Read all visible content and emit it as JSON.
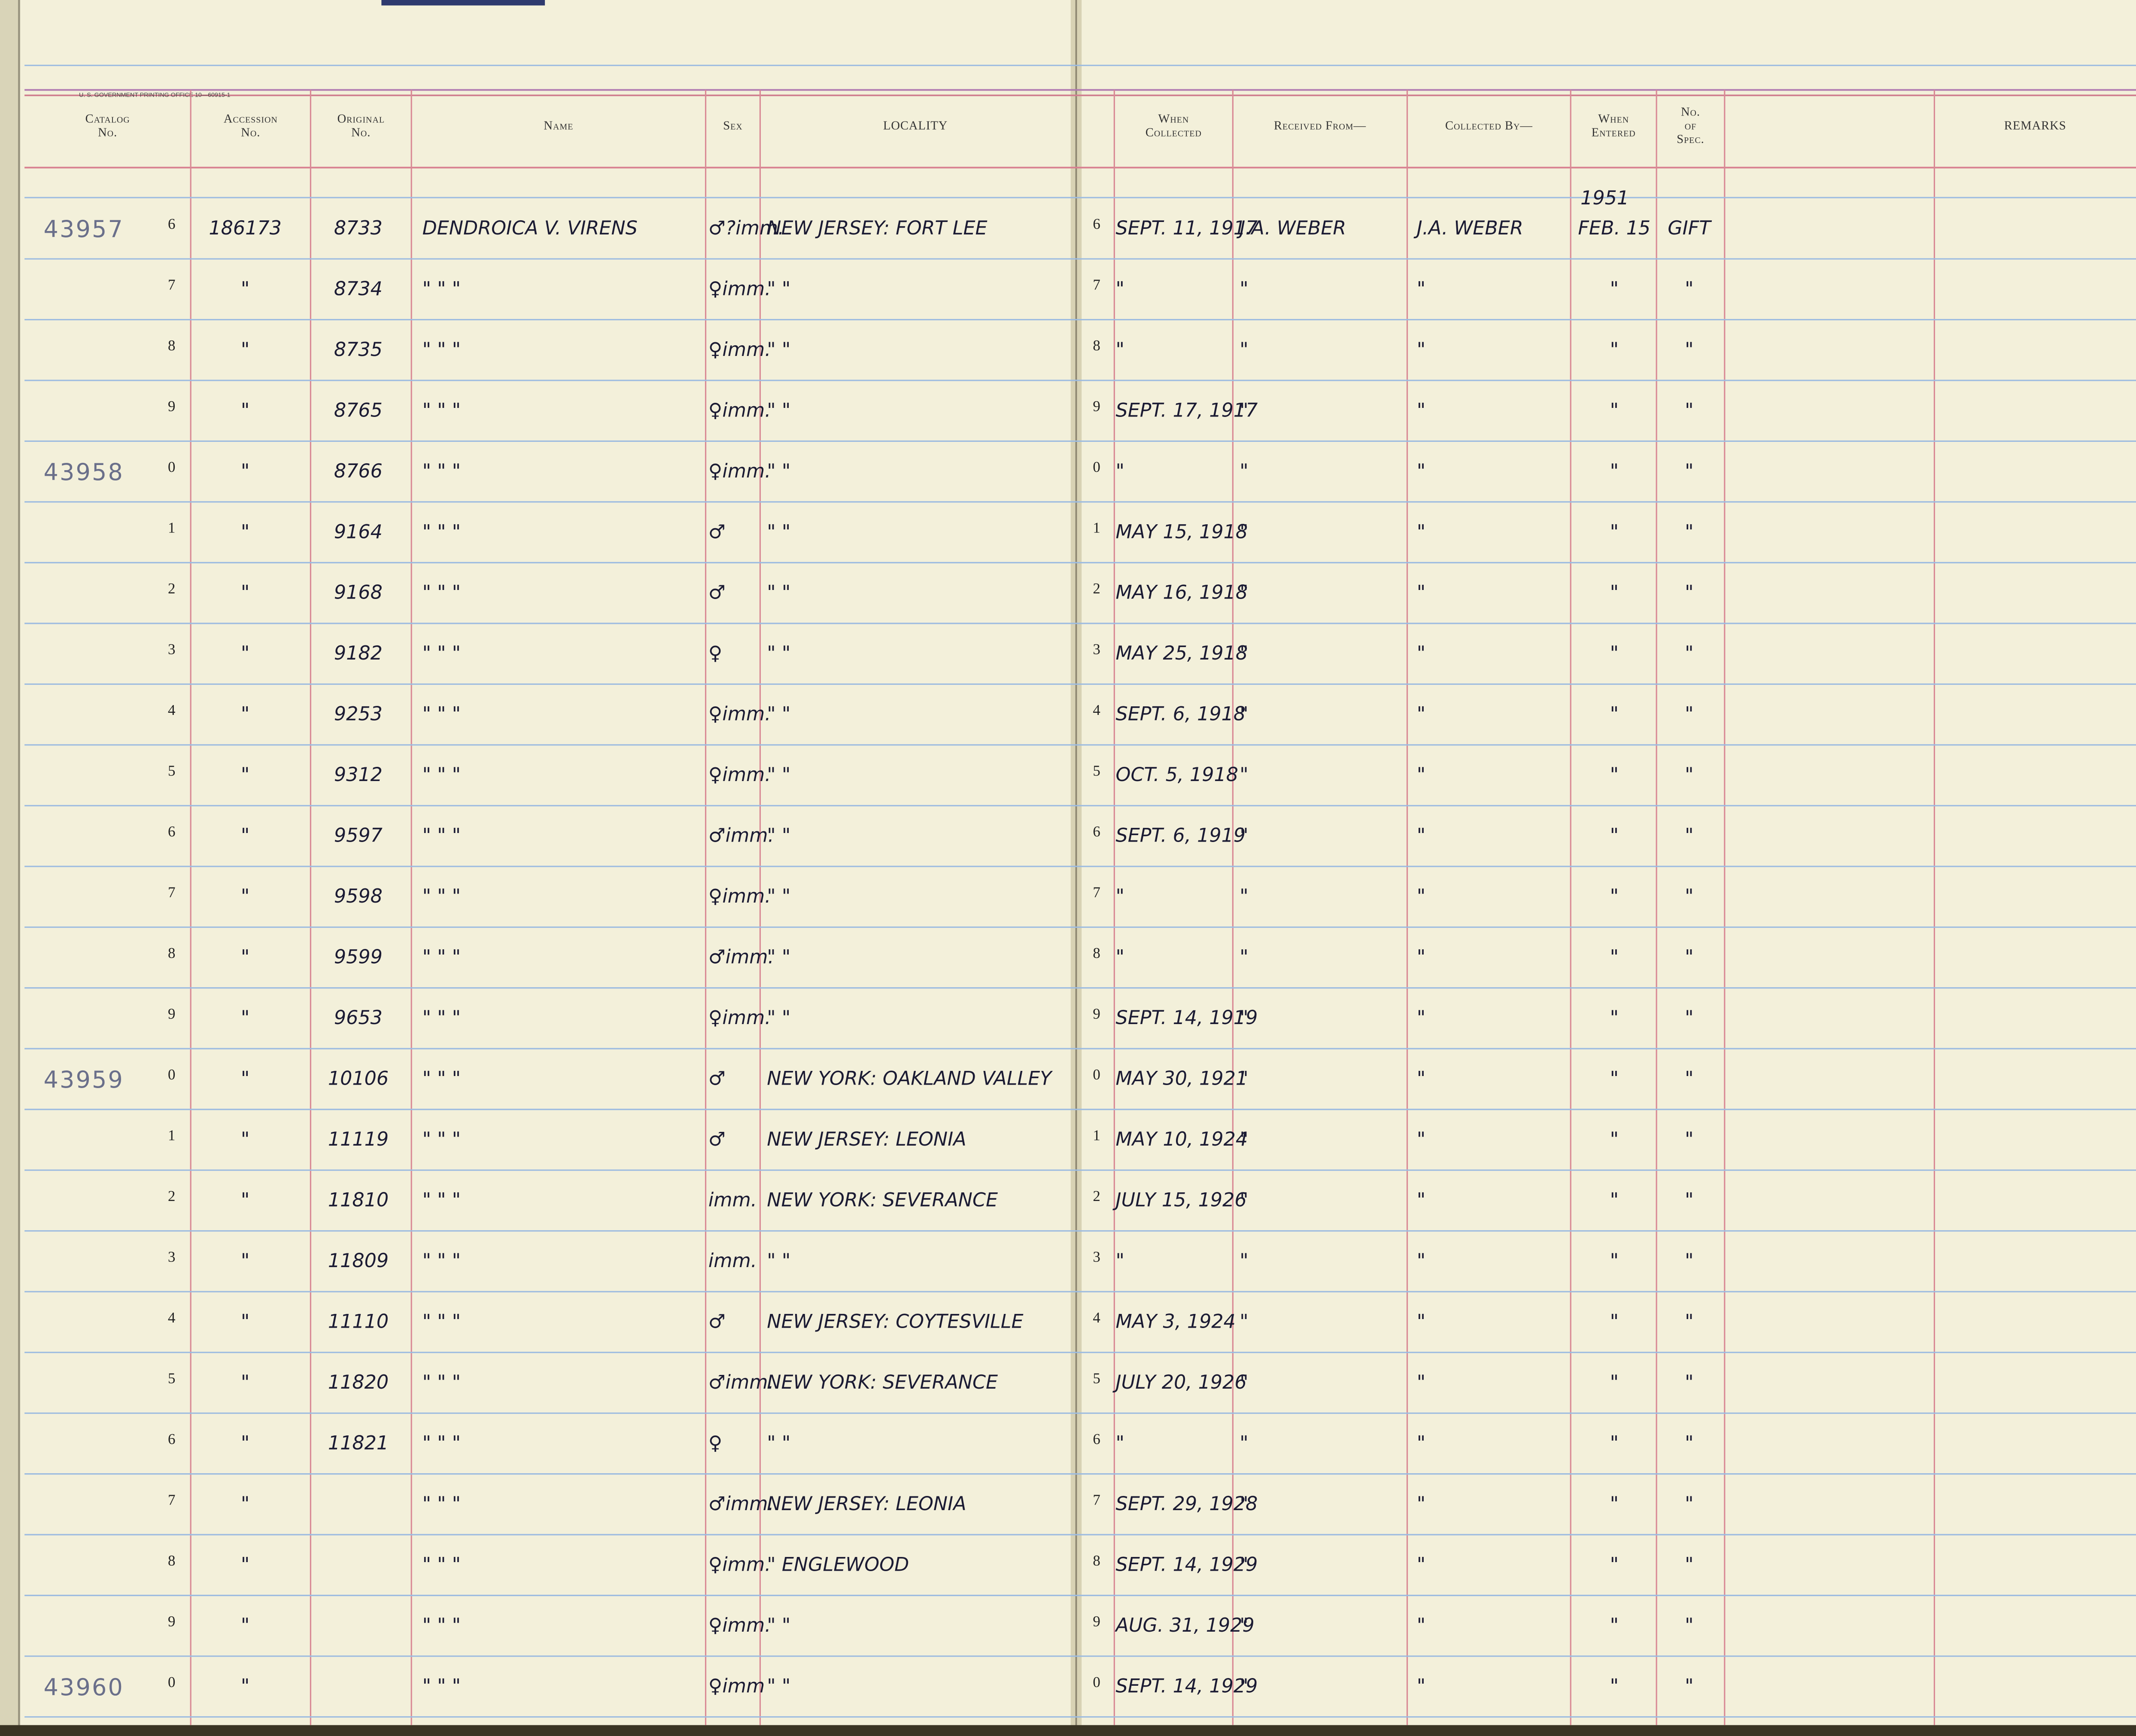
{
  "header": {
    "printer": "U. S. GOVERNMENT PRINTING OFFICE 10—60915-1",
    "columns": [
      {
        "key": "catalog",
        "label": [
          "Catalog",
          "No."
        ]
      },
      {
        "key": "accession",
        "label": [
          "Accession",
          "No."
        ]
      },
      {
        "key": "original",
        "label": [
          "Original",
          "No."
        ]
      },
      {
        "key": "name",
        "label": [
          "Name"
        ]
      },
      {
        "key": "sex",
        "label": [
          "Sex"
        ]
      },
      {
        "key": "locality",
        "label": [
          "LOCALITY"
        ]
      },
      {
        "key": "when",
        "label": [
          "When",
          "Collected"
        ]
      },
      {
        "key": "received",
        "label": [
          "Received From—"
        ]
      },
      {
        "key": "collected",
        "label": [
          "Collected By—"
        ]
      },
      {
        "key": "entered",
        "label": [
          "When",
          "Entered"
        ]
      },
      {
        "key": "spec",
        "label": [
          "No.",
          "of",
          "Spec."
        ]
      },
      {
        "key": "remarks",
        "label": [
          "REMARKS"
        ]
      }
    ]
  },
  "rows": [
    {
      "catalog": "43957",
      "line": "6",
      "accession": "186173",
      "original": "8733",
      "name": "DENDROICA V. VIRENS",
      "sex": "♂?imm.",
      "locality": "NEW JERSEY: FORT LEE",
      "when": "SEPT. 11, 1917",
      "received": "J.A. WEBER",
      "collected": "J.A. WEBER",
      "entered_year": "1951",
      "entered": "FEB. 15",
      "spec": "GIFT"
    },
    {
      "line": "7",
      "accession": "\"",
      "original": "8734",
      "name": "\"     \"     \"",
      "sex": "♀imm.",
      "locality": "\"          \"",
      "when": "\"",
      "received": "\"",
      "collected": "\"",
      "entered": "\"",
      "spec": "\""
    },
    {
      "line": "8",
      "accession": "\"",
      "original": "8735",
      "name": "\"     \"     \"",
      "sex": "♀imm.",
      "locality": "\"          \"",
      "when": "\"",
      "received": "\"",
      "collected": "\"",
      "entered": "\"",
      "spec": "\""
    },
    {
      "line": "9",
      "accession": "\"",
      "original": "8765",
      "name": "\"     \"     \"",
      "sex": "♀imm.",
      "locality": "\"          \"",
      "when": "SEPT. 17, 1917",
      "received": "\"",
      "collected": "\"",
      "entered": "\"",
      "spec": "\""
    },
    {
      "catalog": "43958",
      "line": "0",
      "accession": "\"",
      "original": "8766",
      "name": "\"     \"     \"",
      "sex": "♀imm.",
      "locality": "\"          \"",
      "when": "\"",
      "received": "\"",
      "collected": "\"",
      "entered": "\"",
      "spec": "\""
    },
    {
      "line": "1",
      "accession": "\"",
      "original": "9164",
      "name": "\"     \"     \"",
      "sex": "♂",
      "locality": "\"          \"",
      "when": "MAY 15, 1918",
      "received": "\"",
      "collected": "\"",
      "entered": "\"",
      "spec": "\""
    },
    {
      "line": "2",
      "accession": "\"",
      "original": "9168",
      "name": "\"     \"     \"",
      "sex": "♂",
      "locality": "\"          \"",
      "when": "MAY 16, 1918",
      "received": "\"",
      "collected": "\"",
      "entered": "\"",
      "spec": "\""
    },
    {
      "line": "3",
      "accession": "\"",
      "original": "9182",
      "name": "\"     \"     \"",
      "sex": "♀",
      "locality": "\"          \"",
      "when": "MAY 25, 1918",
      "received": "\"",
      "collected": "\"",
      "entered": "\"",
      "spec": "\""
    },
    {
      "line": "4",
      "accession": "\"",
      "original": "9253",
      "name": "\"     \"     \"",
      "sex": "♀imm.",
      "locality": "\"          \"",
      "when": "SEPT. 6, 1918",
      "received": "\"",
      "collected": "\"",
      "entered": "\"",
      "spec": "\""
    },
    {
      "line": "5",
      "accession": "\"",
      "original": "9312",
      "name": "\"     \"     \"",
      "sex": "♀imm.",
      "locality": "\"          \"",
      "when": "OCT. 5, 1918",
      "received": "\"",
      "collected": "\"",
      "entered": "\"",
      "spec": "\""
    },
    {
      "line": "6",
      "accession": "\"",
      "original": "9597",
      "name": "\"     \"     \"",
      "sex": "♂imm.",
      "locality": "\"          \"",
      "when": "SEPT. 6, 1919",
      "received": "\"",
      "collected": "\"",
      "entered": "\"",
      "spec": "\""
    },
    {
      "line": "7",
      "accession": "\"",
      "original": "9598",
      "name": "\"     \"     \"",
      "sex": "♀imm.",
      "locality": "\"          \"",
      "when": "\"",
      "received": "\"",
      "collected": "\"",
      "entered": "\"",
      "spec": "\""
    },
    {
      "line": "8",
      "accession": "\"",
      "original": "9599",
      "name": "\"     \"     \"",
      "sex": "♂imm.",
      "locality": "\"          \"",
      "when": "\"",
      "received": "\"",
      "collected": "\"",
      "entered": "\"",
      "spec": "\""
    },
    {
      "line": "9",
      "accession": "\"",
      "original": "9653",
      "name": "\"     \"     \"",
      "sex": "♀imm.",
      "locality": "\"          \"",
      "when": "SEPT. 14, 1919",
      "received": "\"",
      "collected": "\"",
      "entered": "\"",
      "spec": "\""
    },
    {
      "catalog": "43959",
      "line": "0",
      "accession": "\"",
      "original": "10106",
      "name": "\"     \"     \"",
      "sex": "♂",
      "locality": "NEW YORK: OAKLAND VALLEY",
      "when": "MAY 30, 1921",
      "received": "\"",
      "collected": "\"",
      "entered": "\"",
      "spec": "\""
    },
    {
      "line": "1",
      "accession": "\"",
      "original": "11119",
      "name": "\"     \"     \"",
      "sex": "♂",
      "locality": "NEW JERSEY: LEONIA",
      "when": "MAY 10, 1924",
      "received": "\"",
      "collected": "\"",
      "entered": "\"",
      "spec": "\""
    },
    {
      "line": "2",
      "accession": "\"",
      "original": "11810",
      "name": "\"     \"     \"",
      "sex": "imm.",
      "locality": "NEW YORK: SEVERANCE",
      "when": "JULY 15, 1926",
      "received": "\"",
      "collected": "\"",
      "entered": "\"",
      "spec": "\""
    },
    {
      "line": "3",
      "accession": "\"",
      "original": "11809",
      "name": "\"     \"     \"",
      "sex": "imm.",
      "locality": "\"          \"",
      "when": "\"",
      "received": "\"",
      "collected": "\"",
      "entered": "\"",
      "spec": "\""
    },
    {
      "line": "4",
      "accession": "\"",
      "original": "11110",
      "name": "\"     \"     \"",
      "sex": "♂",
      "locality": "NEW JERSEY: COYTESVILLE",
      "when": "MAY 3, 1924",
      "received": "\"",
      "collected": "\"",
      "entered": "\"",
      "spec": "\""
    },
    {
      "line": "5",
      "accession": "\"",
      "original": "11820",
      "name": "\"     \"     \"",
      "sex": "♂imm.",
      "locality": "NEW YORK: SEVERANCE",
      "when": "JULY 20, 1926",
      "received": "\"",
      "collected": "\"",
      "entered": "\"",
      "spec": "\""
    },
    {
      "line": "6",
      "accession": "\"",
      "original": "11821",
      "name": "\"     \"     \"",
      "sex": "♀",
      "locality": "\"          \"",
      "when": "\"",
      "received": "\"",
      "collected": "\"",
      "entered": "\"",
      "spec": "\""
    },
    {
      "line": "7",
      "accession": "\"",
      "name": "\"     \"     \"",
      "sex": "♂imm.",
      "locality": "NEW JERSEY: LEONIA",
      "when": "SEPT. 29, 1928",
      "received": "\"",
      "collected": "\"",
      "entered": "\"",
      "spec": "\""
    },
    {
      "line": "8",
      "accession": "\"",
      "name": "\"     \"     \"",
      "sex": "♀imm.",
      "locality": "\"      ENGLEWOOD",
      "when": "SEPT. 14, 1929",
      "received": "\"",
      "collected": "\"",
      "entered": "\"",
      "spec": "\""
    },
    {
      "line": "9",
      "accession": "\"",
      "name": "\"     \"     \"",
      "sex": "♀imm.",
      "locality": "\"          \"",
      "when": "AUG. 31, 1929",
      "received": "\"",
      "collected": "\"",
      "entered": "\"",
      "spec": "\""
    },
    {
      "catalog": "43960",
      "line": "0",
      "accession": "\"",
      "name": "\"     \"     \"",
      "sex": "♀imm",
      "locality": "\"          \"",
      "when": "SEPT. 14, 1929",
      "received": "\"",
      "collected": "\"",
      "entered": "\"",
      "spec": "\""
    }
  ]
}
